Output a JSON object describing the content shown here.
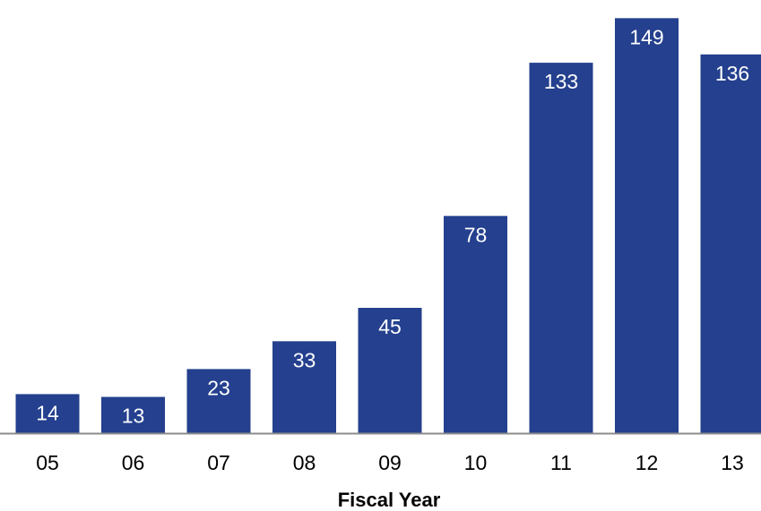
{
  "chart_data": {
    "type": "bar",
    "categories": [
      "05",
      "06",
      "07",
      "08",
      "09",
      "10",
      "11",
      "12",
      "13"
    ],
    "values": [
      14,
      13,
      23,
      33,
      45,
      78,
      133,
      149,
      136
    ],
    "xlabel": "Fiscal Year",
    "ylabel": "",
    "ylim": [
      0,
      152
    ],
    "data_labels": true,
    "grid": false,
    "bar_color": "#24408E",
    "axis_color": "#8C8C8C"
  }
}
